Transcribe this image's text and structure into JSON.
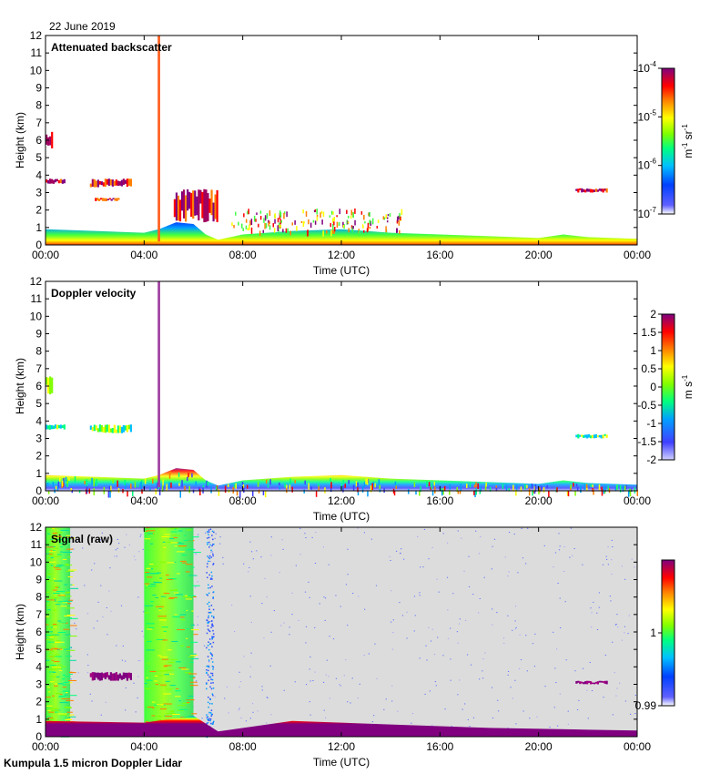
{
  "date_label": "22 June 2019",
  "footer": "Kumpula 1.5 micron Doppler Lidar",
  "colors": {
    "signal_background": "#dcdcdc",
    "frame": "#000000"
  },
  "chart_data": [
    {
      "type": "heatmap",
      "title": "Attenuated backscatter",
      "xlabel": "Time (UTC)",
      "ylabel": "Height (km)",
      "xticks": [
        "00:00",
        "04:00",
        "08:00",
        "12:00",
        "16:00",
        "20:00",
        "00:00"
      ],
      "yticks": [
        "0",
        "1",
        "2",
        "3",
        "4",
        "5",
        "6",
        "7",
        "8",
        "9",
        "10",
        "11",
        "12"
      ],
      "xlim_hours": [
        0,
        24
      ],
      "ylim_km": [
        0,
        12
      ],
      "colorbar": {
        "scale": "log",
        "ticks": [
          "10",
          "10",
          "10",
          "10"
        ],
        "tick_exponents": [
          "-4",
          "-5",
          "-6",
          "-7"
        ],
        "unit": "m",
        "unit_exp1": "-1",
        "unit_mid": " sr",
        "unit_exp2": "-1"
      },
      "features": [
        {
          "kind": "boundary_layer",
          "x": [
            0,
            2,
            4,
            4.6,
            5.3,
            6,
            6.5,
            7,
            8,
            10,
            12,
            14,
            16,
            18,
            20,
            21,
            22,
            23,
            24
          ],
          "top_km": [
            0.9,
            0.8,
            0.7,
            0.9,
            1.3,
            1.2,
            0.6,
            0.3,
            0.6,
            0.8,
            0.9,
            0.7,
            0.6,
            0.5,
            0.4,
            0.6,
            0.45,
            0.4,
            0.35
          ]
        },
        {
          "kind": "cloud",
          "x0": 0,
          "x1": 0.3,
          "y0": 5.5,
          "y1": 6.6
        },
        {
          "kind": "cloud",
          "x0": 0,
          "x1": 0.8,
          "y0": 3.5,
          "y1": 3.8
        },
        {
          "kind": "cloud",
          "x0": 1.8,
          "x1": 3.5,
          "y0": 3.3,
          "y1": 3.8
        },
        {
          "kind": "cloud",
          "x0": 2,
          "x1": 3,
          "y0": 2.5,
          "y1": 2.7
        },
        {
          "kind": "cloud",
          "x0": 21.5,
          "x1": 22.8,
          "y0": 3.0,
          "y1": 3.25
        },
        {
          "kind": "cloud",
          "x0": 5.2,
          "x1": 7,
          "y0": 1.3,
          "y1": 3.2
        },
        {
          "kind": "spike",
          "x0": 4.55,
          "x1": 4.65,
          "y0": 0.2,
          "y1": 12
        }
      ]
    },
    {
      "type": "heatmap",
      "title": "Doppler velocity",
      "xlabel": "Time (UTC)",
      "ylabel": "Height (km)",
      "xticks": [
        "00:00",
        "04:00",
        "08:00",
        "12:00",
        "16:00",
        "20:00",
        "00:00"
      ],
      "yticks": [
        "0",
        "1",
        "2",
        "3",
        "4",
        "5",
        "6",
        "7",
        "8",
        "9",
        "10",
        "11",
        "12"
      ],
      "xlim_hours": [
        0,
        24
      ],
      "ylim_km": [
        0,
        12
      ],
      "colorbar": {
        "scale": "linear",
        "ticks": [
          "2",
          "1.5",
          "1",
          "0.5",
          "0",
          "-0.5",
          "-1",
          "-1.5",
          "-2"
        ],
        "unit": "m s",
        "unit_exp": "-1"
      },
      "features": [
        {
          "kind": "boundary_layer",
          "x": [
            0,
            2,
            4,
            4.6,
            5.3,
            6,
            6.5,
            7,
            8,
            10,
            12,
            14,
            16,
            18,
            20,
            21,
            22,
            23,
            24
          ],
          "top_km": [
            0.9,
            0.8,
            0.7,
            0.9,
            1.3,
            1.2,
            0.6,
            0.3,
            0.6,
            0.8,
            0.9,
            0.7,
            0.6,
            0.5,
            0.4,
            0.6,
            0.45,
            0.4,
            0.35
          ]
        },
        {
          "kind": "cloud",
          "x0": 0,
          "x1": 0.3,
          "y0": 5.5,
          "y1": 6.6
        },
        {
          "kind": "cloud",
          "x0": 0,
          "x1": 0.8,
          "y0": 3.5,
          "y1": 3.8
        },
        {
          "kind": "cloud",
          "x0": 1.8,
          "x1": 3.5,
          "y0": 3.3,
          "y1": 3.8
        },
        {
          "kind": "cloud",
          "x0": 21.5,
          "x1": 22.8,
          "y0": 3.0,
          "y1": 3.25
        },
        {
          "kind": "spike",
          "x0": 4.55,
          "x1": 4.65,
          "y0": 0.2,
          "y1": 12
        }
      ]
    },
    {
      "type": "heatmap",
      "title": "Signal (raw)",
      "xlabel": "Time (UTC)",
      "ylabel": "Height (km)",
      "xticks": [
        "00:00",
        "04:00",
        "08:00",
        "12:00",
        "16:00",
        "20:00",
        "00:00"
      ],
      "yticks": [
        "0",
        "1",
        "2",
        "3",
        "4",
        "5",
        "6",
        "7",
        "8",
        "9",
        "10",
        "11",
        "12"
      ],
      "xlim_hours": [
        0,
        24
      ],
      "ylim_km": [
        0,
        12
      ],
      "colorbar": {
        "scale": "linear",
        "ticks": [
          "1",
          "0.99"
        ]
      },
      "features": [
        {
          "kind": "noise_band",
          "x0": 0,
          "x1": 1,
          "y0": 0,
          "y1": 12
        },
        {
          "kind": "noise_band",
          "x0": 4,
          "x1": 6,
          "y0": 0,
          "y1": 12
        },
        {
          "kind": "column",
          "x0": 6.5,
          "x1": 6.8,
          "y0": 0,
          "y1": 12
        },
        {
          "kind": "surface_layer",
          "x": [
            0,
            4,
            6,
            7,
            10,
            14,
            18,
            22,
            24
          ],
          "top_km": [
            0.9,
            0.8,
            1.2,
            0.3,
            0.9,
            0.7,
            0.5,
            0.4,
            0.35
          ]
        },
        {
          "kind": "cloud",
          "x0": 21.5,
          "x1": 22.8,
          "y0": 3.0,
          "y1": 3.2
        },
        {
          "kind": "cloud",
          "x0": 1.8,
          "x1": 3.5,
          "y0": 3.2,
          "y1": 3.7
        }
      ]
    }
  ]
}
